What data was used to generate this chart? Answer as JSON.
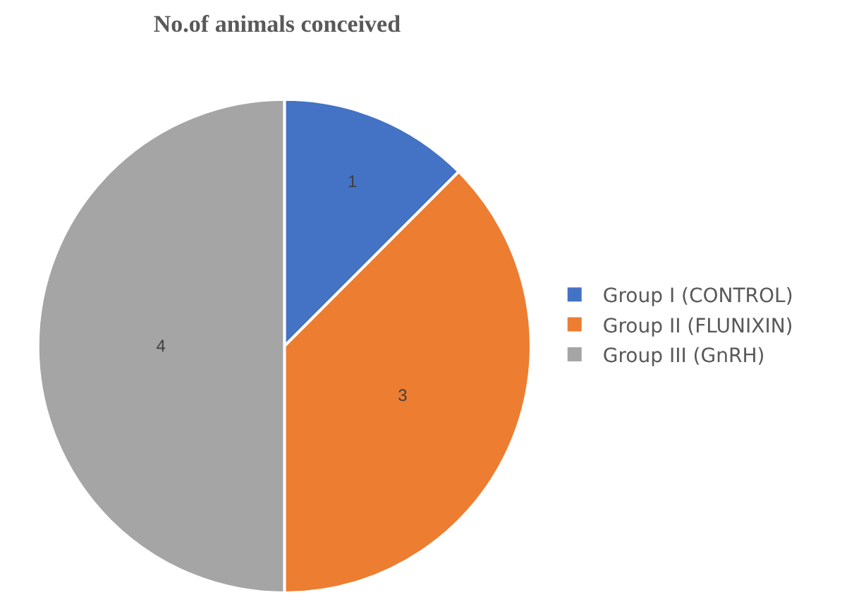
{
  "chart_data": {
    "type": "pie",
    "title": "No.of animals conceived",
    "categories": [
      "Group I (CONTROL)",
      "Group II (FLUNIXIN)",
      "Group III (GnRH)"
    ],
    "values": [
      1,
      3,
      4
    ],
    "colors": [
      "#4472c4",
      "#ed7d31",
      "#a5a5a5"
    ],
    "data_labels": true,
    "legend": "right"
  }
}
